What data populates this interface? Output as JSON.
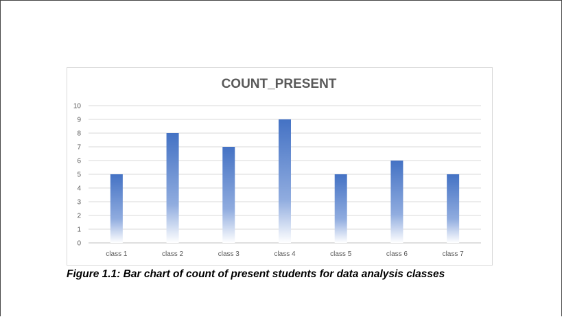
{
  "chart_data": {
    "type": "bar",
    "title": "COUNT_PRESENT",
    "categories": [
      "class 1",
      "class 2",
      "class 3",
      "class 4",
      "class 5",
      "class 6",
      "class 7"
    ],
    "values": [
      5,
      8,
      7,
      9,
      5,
      6,
      5
    ],
    "ylim": [
      0,
      10
    ],
    "yticks": [
      "0",
      "1",
      "2",
      "3",
      "4",
      "5",
      "6",
      "7",
      "8",
      "9",
      "10"
    ],
    "grid": true,
    "bar_color": "#4472c4"
  },
  "caption": "Figure 1.1: Bar chart of count of present students for data analysis classes"
}
